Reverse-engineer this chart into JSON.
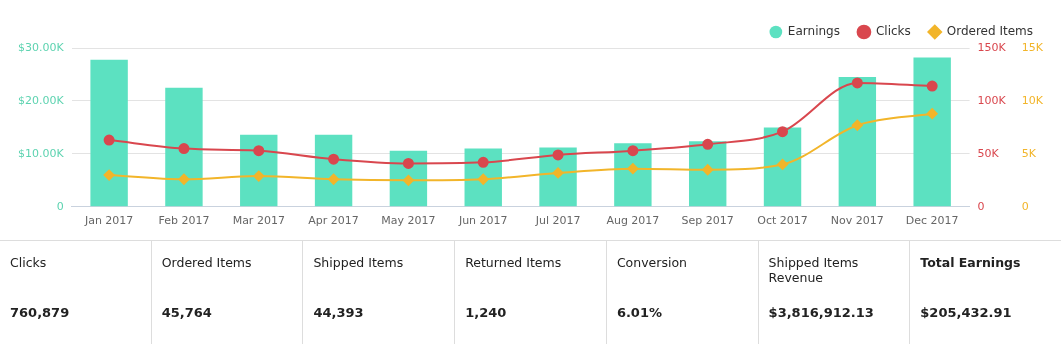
{
  "chart_data": {
    "type": "bar",
    "categories": [
      "Jan 2017",
      "Feb 2017",
      "Mar 2017",
      "Apr 2017",
      "May 2017",
      "Jun 2017",
      "Jul 2017",
      "Aug 2017",
      "Sep 2017",
      "Oct 2017",
      "Nov 2017",
      "Dec 2017"
    ],
    "series": [
      {
        "name": "Earnings",
        "color": "#5ce1c1",
        "values": [
          27800,
          22500,
          13600,
          13600,
          10600,
          11000,
          11200,
          12000,
          12400,
          15000,
          24500,
          28200
        ]
      },
      {
        "name": "Clicks",
        "type": "line",
        "axis": "y2",
        "marker": "circle",
        "color": "#d9474e",
        "values": [
          63000,
          55000,
          53000,
          45000,
          41000,
          42000,
          49000,
          53000,
          59000,
          71000,
          117000,
          114000
        ]
      },
      {
        "name": "Ordered Items",
        "type": "line",
        "axis": "y3",
        "marker": "diamond",
        "color": "#f2b52a",
        "values": [
          3000,
          2600,
          2900,
          2600,
          2500,
          2600,
          3200,
          3600,
          3500,
          4000,
          7700,
          8800
        ]
      }
    ],
    "ylim": [
      0,
      30000
    ],
    "yticks": [
      {
        "value": 0,
        "label": "0"
      },
      {
        "value": 10000,
        "label": "$10.00K"
      },
      {
        "value": 20000,
        "label": "$20.00K"
      },
      {
        "value": 30000,
        "label": "$30.00K"
      }
    ],
    "y2lim": [
      0,
      150000
    ],
    "y2ticks": [
      {
        "value": 0,
        "label": "0"
      },
      {
        "value": 50000,
        "label": "50K"
      },
      {
        "value": 100000,
        "label": "100K"
      },
      {
        "value": 150000,
        "label": "150K"
      }
    ],
    "y3lim": [
      0,
      15000
    ],
    "y3ticks": [
      {
        "value": 0,
        "label": "0"
      },
      {
        "value": 5000,
        "label": "5K"
      },
      {
        "value": 10000,
        "label": "10K"
      },
      {
        "value": 15000,
        "label": "15K"
      }
    ],
    "grid": "y",
    "legend": "top right",
    "annotations": [
      "Clicks",
      "760,879",
      "Ordered Items",
      "45,764",
      "Shipped Items",
      "44,393",
      "Returned Items",
      "1,240",
      "Conversion",
      "6.01%",
      "Shipped Items Revenue",
      "$3,816,912.13",
      "Total Earnings",
      "$205,432.91"
    ]
  }
}
